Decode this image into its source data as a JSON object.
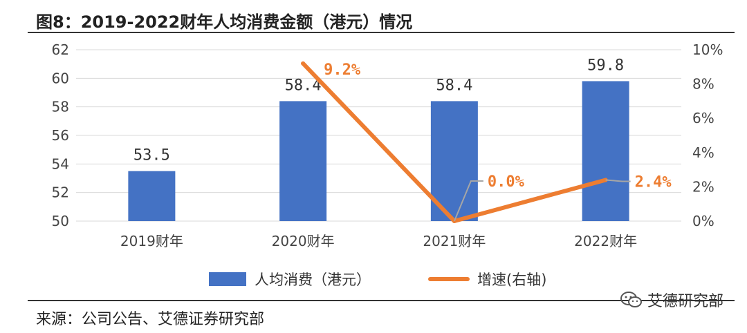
{
  "header": {
    "title": "图8：2019-2022财年人均消费金额（港元）情况"
  },
  "footer": {
    "source": "来源：公司公告、艾德证券研究部"
  },
  "watermark": {
    "text": "艾德研究部",
    "icon": "wechat-icon"
  },
  "chart_data": {
    "type": "bar",
    "title": "",
    "categories": [
      "2019财年",
      "2020财年",
      "2021财年",
      "2022财年"
    ],
    "series": [
      {
        "name": "人均消费（港元）",
        "type": "bar",
        "axis": "left",
        "values": [
          53.5,
          58.4,
          58.4,
          59.8
        ],
        "labels": [
          "53.5",
          "58.4",
          "58.4",
          "59.8"
        ],
        "color": "#4472C4"
      },
      {
        "name": "增速(右轴)",
        "type": "line",
        "axis": "right",
        "values": [
          null,
          9.2,
          0.0,
          2.4
        ],
        "labels": [
          "",
          "9.2%",
          "0.0%",
          "2.4%"
        ],
        "color": "#ED7D31"
      }
    ],
    "y_left": {
      "min": 50,
      "max": 62,
      "ticks": [
        "50",
        "52",
        "54",
        "56",
        "58",
        "60",
        "62"
      ]
    },
    "y_right": {
      "min": 0,
      "max": 10,
      "ticks": [
        "0%",
        "2%",
        "4%",
        "6%",
        "8%",
        "10%"
      ]
    },
    "grid": true,
    "legend": "bottom"
  }
}
